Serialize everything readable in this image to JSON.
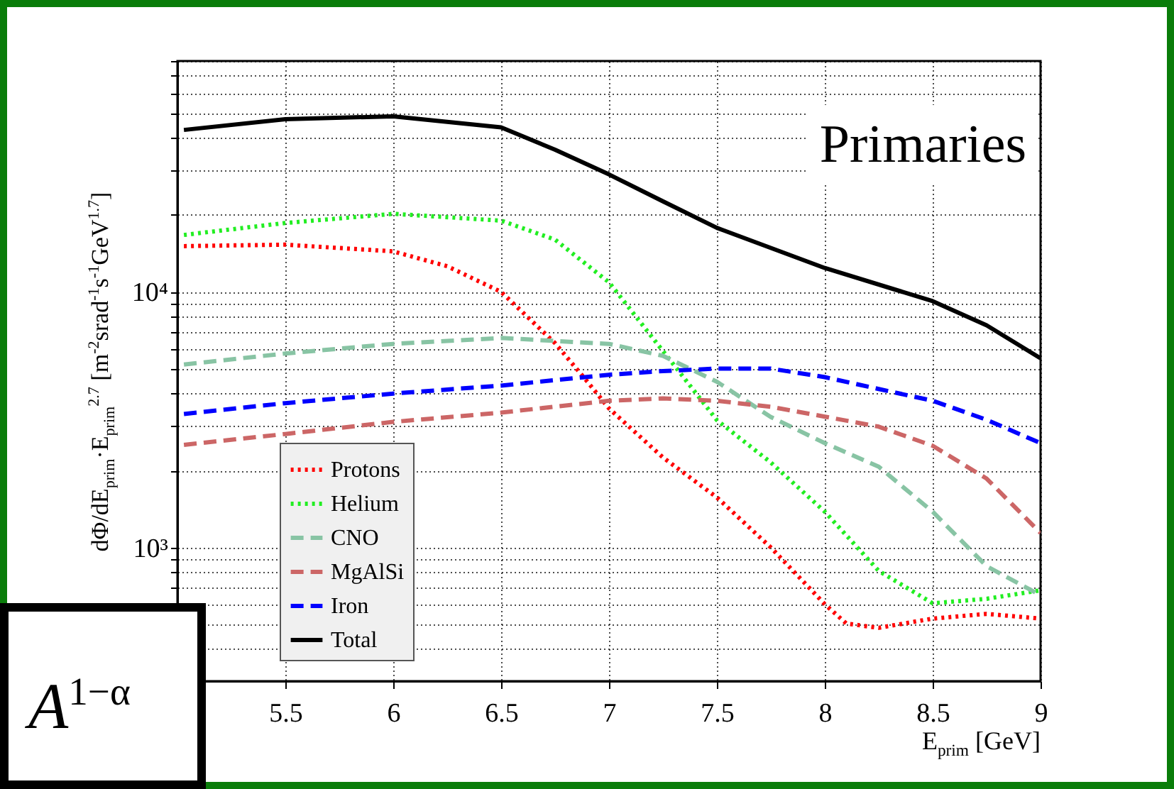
{
  "chart_data": {
    "type": "line",
    "xlabel": "E$_{prim}$ [GeV]",
    "ylabel": "dΦ/dE$_{prim}$·E$_{prim}$$^{2.7}$ [m$^{-2}$srad$^{-1}$s$^{-1}$GeV$^{1.7}$]",
    "annotations": [
      "Primaries",
      "A$^{1−α}$"
    ],
    "log": "y",
    "xlim": [
      5,
      9
    ],
    "xticks": [
      5.5,
      6,
      6.5,
      7,
      7.5,
      8,
      8.5,
      9
    ],
    "ylim": [
      300,
      80000
    ],
    "yticks": [
      {
        "value": 400,
        "label": null
      },
      {
        "value": 500,
        "label": null
      },
      {
        "value": 600,
        "label": null
      },
      {
        "value": 700,
        "label": null
      },
      {
        "value": 800,
        "label": null
      },
      {
        "value": 900,
        "label": null
      },
      {
        "value": 1000,
        "label": "10³"
      },
      {
        "value": 2000,
        "label": null
      },
      {
        "value": 3000,
        "label": null
      },
      {
        "value": 4000,
        "label": null
      },
      {
        "value": 5000,
        "label": null
      },
      {
        "value": 6000,
        "label": null
      },
      {
        "value": 7000,
        "label": null
      },
      {
        "value": 8000,
        "label": null
      },
      {
        "value": 9000,
        "label": null
      },
      {
        "value": 10000,
        "label": "10⁴"
      },
      {
        "value": 20000,
        "label": null
      },
      {
        "value": 30000,
        "label": null
      },
      {
        "value": 40000,
        "label": null
      },
      {
        "value": 50000,
        "label": null
      },
      {
        "value": 60000,
        "label": null
      },
      {
        "value": 70000,
        "label": null
      },
      {
        "value": 80000,
        "label": null
      }
    ],
    "grid": true,
    "legend": "bottom left",
    "series": [
      {
        "name": "Protons",
        "color": "#ff0000",
        "line_style": "dotted",
        "x": [
          5.03,
          5.5,
          6,
          6.25,
          6.5,
          6.75,
          6.9,
          7,
          7.25,
          7.5,
          7.75,
          8,
          8.1,
          8.25,
          8.5,
          8.75,
          9
        ],
        "values": [
          15100,
          15300,
          14400,
          12600,
          10000,
          6300,
          4450,
          3500,
          2250,
          1570,
          1000,
          600,
          504,
          485,
          527,
          550,
          527
        ]
      },
      {
        "name": "Helium",
        "color": "#22ee22",
        "line_style": "dotted",
        "x": [
          5.03,
          5.5,
          6,
          6.5,
          6.75,
          7,
          7.31,
          7.5,
          7.75,
          8,
          8.25,
          8.5,
          8.75,
          9
        ],
        "values": [
          16700,
          18600,
          20200,
          19000,
          16000,
          10900,
          5060,
          3150,
          2150,
          1380,
          810,
          605,
          630,
          680
        ]
      },
      {
        "name": "CNO",
        "color": "#88c4a4",
        "line_style": "dashed",
        "x": [
          5.03,
          5.5,
          6,
          6.5,
          7,
          7.25,
          7.5,
          7.75,
          8,
          8.25,
          8.5,
          8.75,
          9
        ],
        "values": [
          5200,
          5740,
          6260,
          6600,
          6260,
          5620,
          4450,
          3240,
          2560,
          2070,
          1380,
          845,
          650
        ]
      },
      {
        "name": "MgAlSi",
        "color": "#cc6666",
        "line_style": "dashed",
        "x": [
          5.03,
          5.5,
          6,
          6.5,
          7,
          7.25,
          7.5,
          7.75,
          8,
          8.25,
          8.5,
          8.75,
          9
        ],
        "values": [
          2520,
          2780,
          3100,
          3370,
          3750,
          3830,
          3750,
          3550,
          3250,
          2970,
          2500,
          1860,
          1140
        ]
      },
      {
        "name": "Iron",
        "color": "#0000ff",
        "line_style": "dashed",
        "x": [
          5.03,
          5.5,
          6,
          6.5,
          7,
          7.25,
          7.5,
          7.75,
          8,
          8.25,
          8.5,
          8.75,
          9
        ],
        "values": [
          3330,
          3670,
          4000,
          4300,
          4740,
          4900,
          5010,
          5010,
          4640,
          4170,
          3750,
          3160,
          2560
        ]
      },
      {
        "name": "Total",
        "color": "#000000",
        "line_style": "solid",
        "x": [
          5.03,
          5.5,
          6,
          6.5,
          6.75,
          7,
          7.25,
          7.5,
          8,
          8.5,
          8.75,
          9
        ],
        "values": [
          43000,
          47400,
          48600,
          44000,
          36000,
          28800,
          22600,
          17800,
          12400,
          9200,
          7400,
          5500
        ]
      }
    ]
  }
}
